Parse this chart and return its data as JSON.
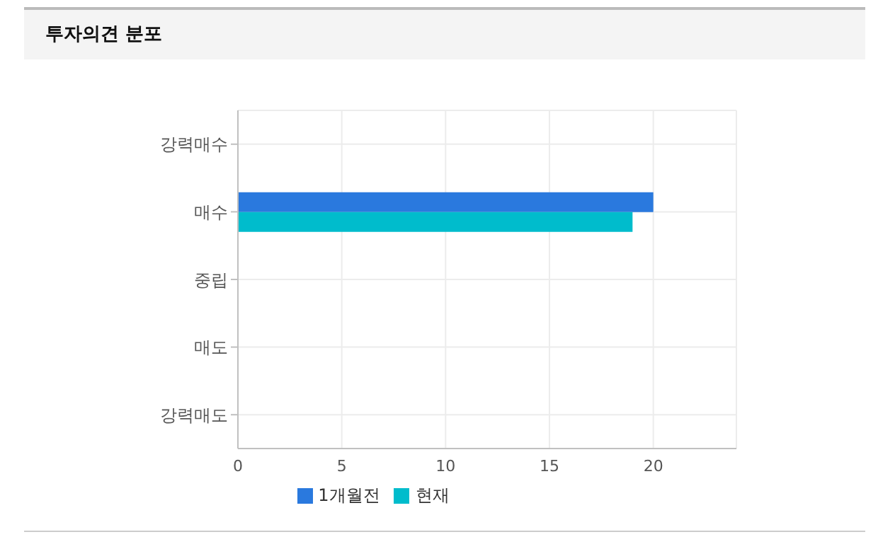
{
  "chart_data": {
    "type": "bar",
    "orientation": "horizontal",
    "title": "투자의견 분포",
    "categories": [
      "강력매수",
      "매수",
      "중립",
      "매도",
      "강력매도"
    ],
    "series": [
      {
        "name": "1개월전",
        "color": "#2a79de",
        "values": [
          null,
          20,
          null,
          null,
          null
        ]
      },
      {
        "name": "현재",
        "color": "#00bccc",
        "values": [
          null,
          19,
          null,
          null,
          null
        ]
      }
    ],
    "xlim": [
      0,
      24
    ],
    "xticks": [
      0,
      5,
      10,
      15,
      20
    ],
    "grid": true,
    "legend": "bottom"
  }
}
